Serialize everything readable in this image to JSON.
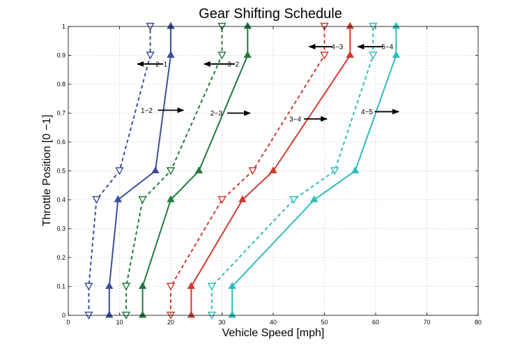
{
  "chart_data": {
    "type": "line",
    "title": "Gear Shifting Schedule",
    "xlabel": "Vehicle Speed [mph]",
    "ylabel": "Throttle Position [0 −1]",
    "xlim": [
      0,
      80
    ],
    "ylim": [
      0,
      1
    ],
    "xticks": [
      0,
      10,
      20,
      30,
      40,
      50,
      60,
      70,
      80
    ],
    "yticks": [
      0,
      0.1,
      0.2,
      0.3,
      0.4,
      0.5,
      0.6,
      0.7,
      0.8,
      0.9,
      1
    ],
    "grid": true,
    "series": [
      {
        "color": "#3a4f9a",
        "style": "dashed",
        "marker": "down-triangle",
        "x": [
          4,
          4,
          5.5,
          10,
          16,
          16
        ],
        "y": [
          0,
          0.1,
          0.4,
          0.5,
          0.9,
          1
        ]
      },
      {
        "color": "#3a4f9a",
        "style": "solid",
        "marker": "up-triangle",
        "x": [
          8,
          8,
          9.7,
          17,
          20,
          20
        ],
        "y": [
          0,
          0.1,
          0.4,
          0.5,
          0.9,
          1
        ]
      },
      {
        "color": "#1f7a3c",
        "style": "dashed",
        "marker": "down-triangle",
        "x": [
          11.3,
          11.3,
          14.5,
          20,
          30,
          30
        ],
        "y": [
          0,
          0.1,
          0.4,
          0.5,
          0.9,
          1
        ]
      },
      {
        "color": "#1f7a3c",
        "style": "solid",
        "marker": "up-triangle",
        "x": [
          14.5,
          14.5,
          20,
          25.5,
          35,
          35
        ],
        "y": [
          0,
          0.1,
          0.4,
          0.5,
          0.9,
          1
        ]
      },
      {
        "color": "#d03a2e",
        "style": "dashed",
        "marker": "down-triangle",
        "x": [
          20,
          20,
          30,
          36,
          50,
          50
        ],
        "y": [
          0,
          0.1,
          0.4,
          0.5,
          0.9,
          1
        ]
      },
      {
        "color": "#d03a2e",
        "style": "solid",
        "marker": "up-triangle",
        "x": [
          24,
          24,
          34,
          40,
          55,
          55
        ],
        "y": [
          0,
          0.1,
          0.4,
          0.5,
          0.9,
          1
        ]
      },
      {
        "color": "#2ebcbc",
        "style": "dashed",
        "marker": "down-triangle",
        "x": [
          28,
          28,
          44,
          52,
          59.5,
          59.5
        ],
        "y": [
          0,
          0.1,
          0.4,
          0.5,
          0.9,
          1
        ]
      },
      {
        "color": "#2ebcbc",
        "style": "solid",
        "marker": "up-triangle",
        "x": [
          32,
          32,
          48,
          56,
          64,
          64
        ],
        "y": [
          0,
          0.1,
          0.4,
          0.5,
          0.9,
          1
        ]
      }
    ],
    "annotations": [
      {
        "text": "2−1",
        "x": 18.2,
        "y": 0.87,
        "arrow": "left",
        "arrow_from": 18.5,
        "arrow_to": 13.5
      },
      {
        "text": "3−2",
        "x": 32.2,
        "y": 0.87,
        "arrow": "left",
        "arrow_from": 32.5,
        "arrow_to": 26.5
      },
      {
        "text": "4−3",
        "x": 52.5,
        "y": 0.93,
        "arrow": "left",
        "arrow_from": 51.5,
        "arrow_to": 47
      },
      {
        "text": "5−4",
        "x": 62.3,
        "y": 0.93,
        "arrow": "left",
        "arrow_from": 61.5,
        "arrow_to": 56.5
      },
      {
        "text": "1−2",
        "x": 15.3,
        "y": 0.71,
        "arrow": "right",
        "arrow_from": 17.5,
        "arrow_to": 22.5
      },
      {
        "text": "2−3",
        "x": 28.9,
        "y": 0.7,
        "arrow": "right",
        "arrow_from": 31,
        "arrow_to": 35.5
      },
      {
        "text": "3−4",
        "x": 44.3,
        "y": 0.68,
        "arrow": "right",
        "arrow_from": 46,
        "arrow_to": 50.5
      },
      {
        "text": "4−5",
        "x": 58.3,
        "y": 0.705,
        "arrow": "right",
        "arrow_from": 59.8,
        "arrow_to": 64.5
      }
    ]
  }
}
